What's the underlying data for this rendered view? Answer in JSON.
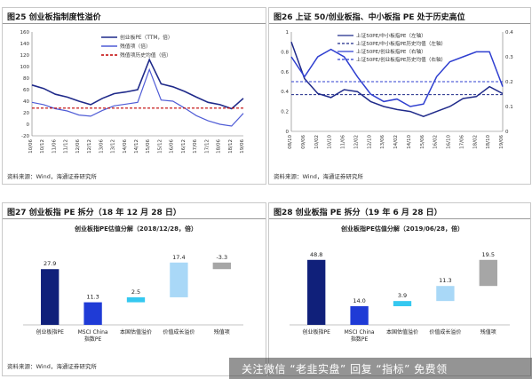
{
  "top_strip": "",
  "watermark": "关注微信 “老韭实盘” 回复 “指标” 免费领",
  "panels": {
    "p25": {
      "title": "图25 创业板指制度性溢价",
      "source": "资料来源：Wind，海通证券研究所"
    },
    "p26": {
      "title": "图26 上证 50/创业板指、中小板指 PE 处于历史高位",
      "source": "资料来源：Wind，海通证券研究所"
    },
    "p27": {
      "title": "图27 创业板指 PE 拆分（18 年 12 月 28 日）",
      "source": "资料来源：Wind，海通证券研究所"
    },
    "p28": {
      "title": "图28 创业板指 PE 拆分（19 年 6 月 28 日）",
      "source": ""
    }
  },
  "chart_data": [
    {
      "id": "fig25",
      "type": "line",
      "title": "",
      "legend": [
        "创业板PE（TTM，倍）",
        "残值项（倍）",
        "残值项历史均值（倍）"
      ],
      "legend_position": "top-right",
      "colors": [
        "#1f2a8a",
        "#4f5cd6",
        "#c00000"
      ],
      "x_ticks": [
        "10/06",
        "10/12",
        "11/06",
        "11/12",
        "12/06",
        "12/12",
        "13/06",
        "13/12",
        "14/06",
        "14/12",
        "15/06",
        "15/12",
        "16/06",
        "16/12",
        "17/06",
        "17/12",
        "18/06",
        "18/12",
        "19/06"
      ],
      "ylim": [
        -20,
        160
      ],
      "y_ticks": [
        -20,
        0,
        20,
        40,
        60,
        80,
        100,
        120,
        140,
        160
      ],
      "series": [
        {
          "name": "创业板PE（TTM，倍）",
          "values": [
            68,
            62,
            52,
            47,
            40,
            34,
            45,
            53,
            56,
            60,
            112,
            70,
            65,
            57,
            47,
            38,
            34,
            27,
            45
          ]
        },
        {
          "name": "残值项（倍）",
          "values": [
            38,
            34,
            27,
            23,
            16,
            14,
            24,
            32,
            35,
            38,
            95,
            42,
            40,
            28,
            15,
            6,
            0,
            -3,
            19
          ]
        },
        {
          "name": "残值项历史均值（倍）",
          "values": [
            28,
            28,
            28,
            28,
            28,
            28,
            28,
            28,
            28,
            28,
            28,
            28,
            28,
            28,
            28,
            28,
            28,
            28,
            28
          ]
        }
      ]
    },
    {
      "id": "fig26",
      "type": "line",
      "title": "",
      "legend": [
        "上证50PE/中小板指PE（左轴）",
        "上证50PE/中小板指PE历史均值（左轴）",
        "上证50PE/创业板指PE（右轴）",
        "上证50PE/创业板指PE历史均值（右轴）"
      ],
      "legend_position": "top-right",
      "colors": [
        "#1f2a8a",
        "#1f2a8a",
        "#2f3fd0",
        "#2f3fd0"
      ],
      "x_ticks": [
        "08/10",
        "09/06",
        "10/02",
        "10/10",
        "11/06",
        "12/02",
        "12/10",
        "13/06",
        "14/02",
        "14/10",
        "15/06",
        "16/02",
        "16/10",
        "17/06",
        "18/02",
        "18/10",
        "19/06"
      ],
      "ylim_left": [
        0,
        1.0
      ],
      "y_ticks_left": [
        0,
        0.2,
        0.4,
        0.6,
        0.8,
        1
      ],
      "ylim_right": [
        0,
        0.4
      ],
      "y_ticks_right": [
        0,
        0.1,
        0.2,
        0.3,
        0.4
      ],
      "series": [
        {
          "name": "上证50PE/中小板指PE（左轴）",
          "axis": "left",
          "values": [
            0.9,
            0.53,
            0.38,
            0.34,
            0.42,
            0.4,
            0.3,
            0.25,
            0.22,
            0.2,
            0.15,
            0.2,
            0.25,
            0.33,
            0.35,
            0.45,
            0.38
          ]
        },
        {
          "name": "上证50PE/中小板指PE历史均值（左轴）",
          "axis": "left",
          "values": [
            0.37,
            0.37,
            0.37,
            0.37,
            0.37,
            0.37,
            0.37,
            0.37,
            0.37,
            0.37,
            0.37,
            0.37,
            0.37,
            0.37,
            0.37,
            0.37,
            0.37
          ]
        },
        {
          "name": "上证50PE/创业板指PE（右轴）",
          "axis": "right",
          "values": [
            0.3,
            0.22,
            0.3,
            0.33,
            0.3,
            0.22,
            0.15,
            0.12,
            0.13,
            0.1,
            0.11,
            0.22,
            0.28,
            0.3,
            0.32,
            0.32,
            0.18
          ]
        },
        {
          "name": "上证50PE/创业板指PE历史均值（右轴）",
          "axis": "right",
          "values": [
            0.2,
            0.2,
            0.2,
            0.2,
            0.2,
            0.2,
            0.2,
            0.2,
            0.2,
            0.2,
            0.2,
            0.2,
            0.2,
            0.2,
            0.2,
            0.2,
            0.2
          ]
        }
      ]
    },
    {
      "id": "fig27",
      "type": "bar",
      "title": "创业板指PE估值分解（2018/12/28，倍）",
      "ylim": [
        0,
        40
      ],
      "categories": [
        "创业板指PE",
        "MSCI China 指数PE",
        "本国估值溢价",
        "价值成长溢价",
        "残值项"
      ],
      "bars": [
        {
          "label": "27.9",
          "bottom": 0,
          "top": 27.9,
          "color": "#10207a"
        },
        {
          "label": "11.3",
          "bottom": 0,
          "top": 11.3,
          "color": "#1f3bd6"
        },
        {
          "label": "2.5",
          "bottom": 11.3,
          "top": 13.8,
          "color": "#35c8f0"
        },
        {
          "label": "17.4",
          "bottom": 13.8,
          "top": 31.2,
          "color": "#a9d8f7"
        },
        {
          "label": "-3.3",
          "bottom": 27.9,
          "top": 31.2,
          "color": "#a6a6a6"
        }
      ]
    },
    {
      "id": "fig28",
      "type": "bar",
      "title": "创业板指PE估值分解（2019/06/28，倍）",
      "ylim": [
        0,
        60
      ],
      "categories": [
        "创业板指PE",
        "MSCI China 指数PE",
        "本国估值溢价",
        "价值成长溢价",
        "残值项"
      ],
      "bars": [
        {
          "label": "48.8",
          "bottom": 0,
          "top": 48.8,
          "color": "#10207a"
        },
        {
          "label": "14.0",
          "bottom": 0,
          "top": 14.0,
          "color": "#1f3bd6"
        },
        {
          "label": "3.9",
          "bottom": 14.0,
          "top": 17.9,
          "color": "#35c8f0"
        },
        {
          "label": "11.3",
          "bottom": 17.9,
          "top": 29.2,
          "color": "#a9d8f7"
        },
        {
          "label": "19.5",
          "bottom": 29.2,
          "top": 48.8,
          "color": "#a6a6a6"
        }
      ]
    }
  ]
}
